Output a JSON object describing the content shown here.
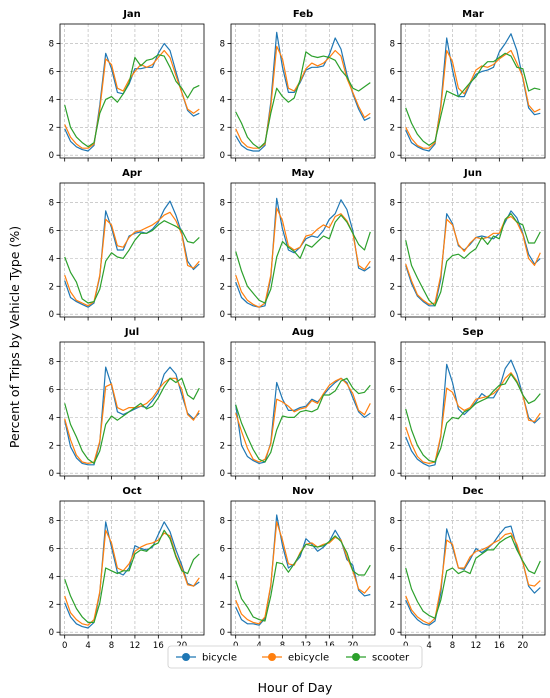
{
  "chart_data": {
    "type": "line",
    "ylabel": "Percent of Trips by Vehicle Type (%)",
    "xlabel": "Hour of Day",
    "x": [
      0,
      1,
      2,
      3,
      4,
      5,
      6,
      7,
      8,
      9,
      10,
      11,
      12,
      13,
      14,
      15,
      16,
      17,
      18,
      19,
      20,
      21,
      22,
      23
    ],
    "x_ticks": [
      0,
      4,
      8,
      12,
      16,
      20
    ],
    "y_ticks": [
      0,
      2,
      4,
      6,
      8
    ],
    "xlim": [
      -0.8,
      23.8
    ],
    "ylim": [
      -0.2,
      9.4
    ],
    "grid": true,
    "legend_position": "bottom-center",
    "colors": {
      "bicycle": "#1f77b4",
      "ebicycle": "#ff7f0e",
      "scooter": "#2ca02c"
    },
    "legend": [
      "bicycle",
      "ebicycle",
      "scooter"
    ],
    "panels": [
      {
        "title": "Jan",
        "series": {
          "bicycle": [
            1.9,
            1.0,
            0.6,
            0.4,
            0.3,
            0.7,
            3.6,
            7.3,
            6.2,
            4.5,
            4.4,
            5.1,
            6.2,
            6.2,
            6.3,
            6.3,
            7.3,
            8.0,
            7.5,
            6.0,
            4.5,
            3.2,
            2.8,
            3.0
          ],
          "ebicycle": [
            2.2,
            1.3,
            0.8,
            0.5,
            0.5,
            0.8,
            3.3,
            6.9,
            6.5,
            4.8,
            4.6,
            5.4,
            6.0,
            6.5,
            6.3,
            6.5,
            7.0,
            7.5,
            7.0,
            5.7,
            4.5,
            3.3,
            3.0,
            3.3
          ],
          "scooter": [
            3.6,
            2.0,
            1.3,
            0.9,
            0.6,
            0.9,
            3.0,
            4.0,
            4.2,
            3.8,
            4.4,
            5.2,
            7.0,
            6.4,
            6.8,
            6.9,
            7.2,
            7.1,
            6.3,
            5.3,
            4.8,
            4.1,
            4.8,
            5.0
          ]
        }
      },
      {
        "title": "Feb",
        "series": {
          "bicycle": [
            1.4,
            0.7,
            0.4,
            0.3,
            0.3,
            0.7,
            3.8,
            8.8,
            6.3,
            4.5,
            4.5,
            5.2,
            6.1,
            6.3,
            6.3,
            6.4,
            7.2,
            8.4,
            7.6,
            5.8,
            4.4,
            3.3,
            2.5,
            2.7
          ],
          "ebicycle": [
            1.9,
            1.0,
            0.6,
            0.5,
            0.5,
            0.8,
            3.5,
            7.8,
            6.9,
            4.8,
            4.6,
            5.3,
            6.2,
            6.6,
            6.4,
            6.6,
            7.0,
            7.5,
            7.1,
            5.5,
            4.5,
            3.5,
            2.7,
            3.0
          ],
          "scooter": [
            3.1,
            2.3,
            1.3,
            0.8,
            0.5,
            0.9,
            3.0,
            4.8,
            4.2,
            3.8,
            4.1,
            5.4,
            7.4,
            7.1,
            7.0,
            7.1,
            7.0,
            6.8,
            6.1,
            5.6,
            4.8,
            4.6,
            4.9,
            5.2
          ]
        }
      },
      {
        "title": "Mar",
        "series": {
          "bicycle": [
            1.8,
            0.9,
            0.6,
            0.4,
            0.3,
            0.8,
            3.6,
            8.4,
            6.1,
            4.2,
            4.2,
            5.1,
            5.8,
            6.0,
            6.1,
            6.3,
            7.4,
            8.0,
            8.7,
            7.5,
            5.5,
            3.4,
            2.9,
            3.0
          ],
          "ebicycle": [
            2.0,
            1.2,
            0.7,
            0.5,
            0.5,
            0.9,
            3.4,
            7.5,
            6.7,
            4.8,
            4.4,
            5.2,
            6.1,
            6.4,
            6.3,
            6.5,
            6.9,
            7.2,
            7.5,
            6.6,
            5.6,
            3.6,
            3.1,
            3.3
          ],
          "scooter": [
            3.4,
            2.3,
            1.5,
            1.0,
            0.7,
            1.0,
            2.8,
            4.6,
            4.4,
            4.2,
            4.7,
            5.2,
            5.6,
            6.3,
            6.7,
            6.7,
            7.0,
            7.3,
            7.1,
            6.3,
            6.2,
            4.6,
            4.8,
            4.7
          ]
        }
      },
      {
        "title": "Apr",
        "series": {
          "bicycle": [
            2.4,
            1.2,
            0.9,
            0.7,
            0.5,
            0.8,
            2.7,
            7.4,
            6.2,
            4.6,
            4.6,
            5.6,
            5.8,
            5.9,
            5.8,
            6.1,
            6.6,
            7.5,
            8.1,
            7.1,
            5.8,
            3.8,
            3.2,
            3.6
          ],
          "ebicycle": [
            2.8,
            1.6,
            1.0,
            0.8,
            0.6,
            0.9,
            2.8,
            6.8,
            6.4,
            4.9,
            4.8,
            5.5,
            5.9,
            6.0,
            6.2,
            6.4,
            6.7,
            7.1,
            7.3,
            6.7,
            5.7,
            3.5,
            3.3,
            3.8
          ],
          "scooter": [
            4.1,
            3.0,
            2.3,
            1.1,
            0.8,
            0.9,
            1.8,
            3.8,
            4.4,
            4.1,
            4.0,
            4.6,
            5.3,
            5.8,
            5.8,
            6.0,
            6.4,
            6.7,
            6.5,
            6.3,
            6.0,
            5.2,
            5.1,
            5.5
          ]
        }
      },
      {
        "title": "May",
        "series": {
          "bicycle": [
            2.3,
            1.2,
            0.8,
            0.6,
            0.5,
            0.6,
            2.6,
            8.3,
            6.1,
            4.6,
            4.4,
            4.8,
            5.4,
            5.6,
            5.5,
            6.0,
            6.8,
            7.2,
            8.2,
            7.5,
            6.0,
            3.3,
            3.1,
            3.4
          ],
          "ebicycle": [
            2.8,
            1.6,
            1.0,
            0.7,
            0.5,
            0.8,
            2.8,
            7.6,
            6.7,
            4.9,
            4.6,
            4.8,
            5.6,
            5.7,
            6.1,
            6.4,
            6.2,
            7.0,
            7.2,
            6.7,
            5.8,
            3.5,
            3.2,
            3.8
          ],
          "scooter": [
            4.5,
            3.1,
            2.0,
            1.5,
            1.0,
            0.8,
            1.8,
            4.1,
            5.2,
            4.8,
            4.5,
            4.0,
            5.0,
            4.8,
            5.2,
            5.6,
            5.4,
            6.6,
            7.1,
            6.6,
            5.8,
            5.0,
            4.6,
            5.9
          ]
        }
      },
      {
        "title": "Jun",
        "series": {
          "bicycle": [
            3.5,
            2.2,
            1.3,
            0.9,
            0.6,
            0.6,
            2.5,
            7.2,
            6.5,
            4.9,
            4.6,
            5.0,
            5.5,
            5.6,
            5.5,
            5.4,
            5.8,
            6.6,
            7.4,
            6.9,
            5.8,
            4.3,
            3.6,
            4.0
          ],
          "ebicycle": [
            3.6,
            2.4,
            1.4,
            1.0,
            0.7,
            0.8,
            2.8,
            6.8,
            6.4,
            5.0,
            4.5,
            5.1,
            5.5,
            5.4,
            5.5,
            5.8,
            5.8,
            6.8,
            7.0,
            6.6,
            5.7,
            4.0,
            3.5,
            4.4
          ],
          "scooter": [
            5.3,
            3.5,
            2.6,
            1.8,
            1.0,
            0.6,
            1.6,
            3.8,
            4.2,
            4.3,
            4.0,
            4.4,
            4.7,
            5.5,
            5.0,
            5.6,
            5.4,
            6.8,
            7.2,
            6.6,
            6.4,
            5.1,
            5.1,
            5.9
          ]
        }
      },
      {
        "title": "Jul",
        "series": {
          "bicycle": [
            3.8,
            1.9,
            1.1,
            0.7,
            0.6,
            0.6,
            2.2,
            7.6,
            6.3,
            4.4,
            4.2,
            4.4,
            4.6,
            4.8,
            4.7,
            5.2,
            5.8,
            7.1,
            7.6,
            7.1,
            5.6,
            4.3,
            3.9,
            4.3
          ],
          "ebicycle": [
            3.9,
            2.4,
            1.3,
            0.8,
            0.7,
            0.8,
            2.3,
            6.2,
            6.4,
            4.7,
            4.5,
            4.7,
            4.7,
            4.8,
            5.0,
            5.4,
            6.0,
            6.5,
            6.8,
            6.8,
            6.0,
            4.2,
            3.8,
            4.5
          ],
          "scooter": [
            5.0,
            3.5,
            2.6,
            1.6,
            1.0,
            0.7,
            1.6,
            3.5,
            4.1,
            3.8,
            4.1,
            4.4,
            4.7,
            5.0,
            4.6,
            4.8,
            5.4,
            6.2,
            6.8,
            6.5,
            6.8,
            5.6,
            5.3,
            6.1
          ]
        }
      },
      {
        "title": "Aug",
        "series": {
          "bicycle": [
            4.9,
            2.0,
            1.2,
            0.9,
            0.7,
            0.8,
            2.2,
            6.5,
            5.3,
            4.5,
            4.5,
            4.7,
            4.8,
            5.3,
            5.1,
            5.6,
            6.1,
            6.5,
            6.8,
            6.5,
            5.4,
            4.4,
            4.0,
            4.3
          ],
          "ebicycle": [
            4.3,
            3.0,
            1.8,
            1.0,
            0.8,
            1.0,
            2.1,
            5.3,
            5.1,
            4.8,
            4.4,
            4.6,
            4.7,
            5.2,
            5.0,
            5.7,
            6.3,
            6.6,
            6.8,
            6.4,
            5.7,
            4.5,
            4.2,
            5.0
          ],
          "scooter": [
            4.9,
            3.6,
            2.6,
            1.7,
            1.0,
            0.8,
            1.5,
            3.1,
            4.1,
            4.0,
            4.0,
            4.4,
            4.5,
            4.4,
            4.6,
            5.6,
            5.6,
            5.9,
            6.6,
            6.8,
            6.1,
            5.7,
            5.8,
            6.3
          ]
        }
      },
      {
        "title": "Sep",
        "series": {
          "bicycle": [
            2.6,
            1.6,
            1.0,
            0.7,
            0.5,
            0.6,
            2.6,
            7.8,
            6.5,
            4.6,
            4.2,
            4.6,
            5.1,
            5.7,
            5.4,
            5.4,
            6.1,
            7.5,
            8.1,
            7.1,
            5.6,
            4.0,
            3.6,
            4.0
          ],
          "ebicycle": [
            3.3,
            2.1,
            1.2,
            0.8,
            0.7,
            0.8,
            2.7,
            6.1,
            5.8,
            4.8,
            4.5,
            4.7,
            5.3,
            5.4,
            5.5,
            5.7,
            6.1,
            6.8,
            7.2,
            6.6,
            5.6,
            3.8,
            3.7,
            4.3
          ],
          "scooter": [
            4.6,
            3.1,
            2.0,
            1.3,
            0.9,
            0.8,
            1.8,
            3.6,
            4.0,
            3.9,
            4.4,
            4.6,
            5.0,
            5.2,
            5.4,
            5.9,
            6.3,
            6.4,
            7.1,
            6.5,
            5.6,
            5.0,
            5.2,
            5.7
          ]
        }
      },
      {
        "title": "Oct",
        "series": {
          "bicycle": [
            2.1,
            1.1,
            0.6,
            0.4,
            0.3,
            0.7,
            2.8,
            7.9,
            6.1,
            4.3,
            4.1,
            4.6,
            6.2,
            6.0,
            5.9,
            6.1,
            7.0,
            7.9,
            7.2,
            5.9,
            4.8,
            3.5,
            3.3,
            3.6
          ],
          "ebicycle": [
            2.6,
            1.4,
            0.9,
            0.6,
            0.5,
            0.9,
            2.9,
            7.3,
            6.4,
            4.6,
            4.4,
            4.9,
            5.8,
            6.1,
            6.3,
            6.4,
            6.6,
            7.1,
            6.9,
            5.5,
            4.6,
            3.4,
            3.3,
            3.9
          ],
          "scooter": [
            3.8,
            2.6,
            1.7,
            1.1,
            0.7,
            0.7,
            2.1,
            4.6,
            4.4,
            4.2,
            4.4,
            4.4,
            5.6,
            5.9,
            5.8,
            6.2,
            6.4,
            7.3,
            6.7,
            5.4,
            4.4,
            4.2,
            5.2,
            5.6
          ]
        }
      },
      {
        "title": "Nov",
        "series": {
          "bicycle": [
            1.8,
            0.9,
            0.6,
            0.6,
            0.5,
            1.0,
            3.3,
            8.4,
            6.2,
            4.6,
            4.9,
            5.4,
            6.7,
            6.3,
            5.8,
            6.1,
            6.5,
            7.3,
            6.6,
            5.2,
            4.8,
            3.0,
            2.6,
            2.7
          ],
          "ebicycle": [
            2.3,
            1.3,
            0.9,
            0.7,
            0.6,
            1.1,
            3.4,
            7.9,
            6.6,
            4.9,
            4.8,
            5.7,
            6.3,
            6.4,
            6.1,
            6.3,
            6.4,
            6.8,
            6.6,
            5.4,
            4.4,
            3.1,
            2.8,
            3.3
          ],
          "scooter": [
            3.7,
            2.4,
            1.8,
            1.1,
            0.9,
            0.8,
            2.6,
            5.0,
            4.9,
            4.3,
            4.9,
            5.6,
            6.3,
            6.2,
            6.1,
            6.2,
            6.5,
            6.9,
            6.5,
            5.7,
            4.4,
            4.1,
            4.1,
            4.8
          ]
        }
      },
      {
        "title": "Dec",
        "series": {
          "bicycle": [
            2.3,
            1.4,
            0.9,
            0.6,
            0.5,
            0.8,
            2.8,
            7.4,
            6.1,
            4.6,
            4.5,
            5.2,
            6.0,
            5.7,
            6.0,
            6.4,
            7.0,
            7.5,
            7.6,
            6.1,
            5.0,
            3.3,
            2.8,
            3.2
          ],
          "ebicycle": [
            2.6,
            1.6,
            1.1,
            0.8,
            0.6,
            1.0,
            3.2,
            6.6,
            6.3,
            4.6,
            4.6,
            5.4,
            5.8,
            5.9,
            6.1,
            6.4,
            6.6,
            7.0,
            7.1,
            6.3,
            5.0,
            3.4,
            3.3,
            3.7
          ],
          "scooter": [
            4.6,
            3.1,
            2.2,
            1.5,
            1.2,
            1.0,
            2.3,
            4.4,
            4.6,
            4.2,
            4.4,
            4.2,
            5.3,
            5.6,
            5.9,
            5.9,
            6.4,
            6.7,
            6.9,
            5.9,
            5.1,
            4.4,
            4.2,
            5.1
          ]
        }
      }
    ]
  }
}
